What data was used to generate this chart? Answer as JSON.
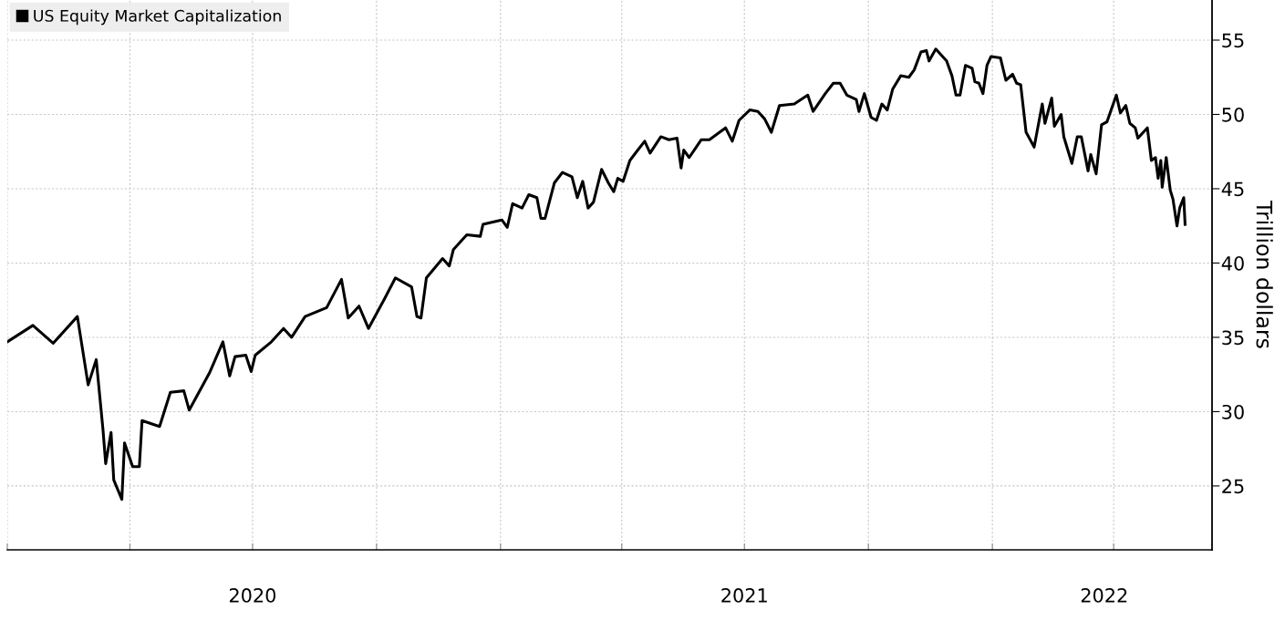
{
  "chart_data": {
    "type": "line",
    "ylabel": "Trillion dollars",
    "legend": "top left",
    "grid": true,
    "marker": "none",
    "line_style": "solid",
    "xlim": [
      "2020-01-01",
      "2022-06-13"
    ],
    "ylim": [
      20.7,
      57.7
    ],
    "yticks": [
      25,
      30,
      35,
      40,
      45,
      50,
      55
    ],
    "xticks": [
      {
        "value": "2020-01-01",
        "label": null
      },
      {
        "value": "2020-04-01",
        "label": null
      },
      {
        "value": "2020-07-01",
        "label": null
      },
      {
        "value": "2020-10-01",
        "label": null
      },
      {
        "value": "2021-01-01",
        "label": null
      },
      {
        "value": "2021-04-01",
        "label": null
      },
      {
        "value": "2021-07-01",
        "label": null
      },
      {
        "value": "2021-10-01",
        "label": null
      },
      {
        "value": "2022-01-01",
        "label": null
      },
      {
        "value": "2022-04-01",
        "label": null
      },
      {
        "value": "2020-07-01",
        "label": "2020"
      },
      {
        "value": "2021-07-01",
        "label": "2021"
      },
      {
        "value": "2022-03-25",
        "label": "2022"
      }
    ],
    "x": [
      "2020-01-01",
      "2020-01-20",
      "2020-02-04",
      "2020-02-22",
      "2020-03-01",
      "2020-03-07",
      "2020-03-12",
      "2020-03-14",
      "2020-03-18",
      "2020-03-20",
      "2020-03-26",
      "2020-03-28",
      "2020-04-03",
      "2020-04-08",
      "2020-04-10",
      "2020-04-23",
      "2020-05-01",
      "2020-05-11",
      "2020-05-15",
      "2020-05-30",
      "2020-06-09",
      "2020-06-14",
      "2020-06-18",
      "2020-06-26",
      "2020-06-30",
      "2020-07-03",
      "2020-07-15",
      "2020-07-24",
      "2020-07-30",
      "2020-08-09",
      "2020-08-25",
      "2020-09-05",
      "2020-09-10",
      "2020-09-18",
      "2020-09-25",
      "2020-10-07",
      "2020-10-15",
      "2020-10-27",
      "2020-10-31",
      "2020-11-03",
      "2020-11-07",
      "2020-11-19",
      "2020-11-24",
      "2020-11-27",
      "2020-12-07",
      "2020-12-17",
      "2020-12-19",
      "2021-01-02",
      "2021-01-06",
      "2021-01-10",
      "2021-01-17",
      "2021-01-22",
      "2021-01-28",
      "2021-01-31",
      "2021-02-03",
      "2021-02-10",
      "2021-02-16",
      "2021-02-23",
      "2021-02-27",
      "2021-03-03",
      "2021-03-07",
      "2021-03-11",
      "2021-03-17",
      "2021-03-22",
      "2021-03-26",
      "2021-03-29",
      "2021-04-02",
      "2021-04-07",
      "2021-04-12",
      "2021-04-18",
      "2021-04-22",
      "2021-04-30",
      "2021-05-06",
      "2021-05-12",
      "2021-05-15",
      "2021-05-17",
      "2021-05-21",
      "2021-05-30",
      "2021-06-05",
      "2021-06-17",
      "2021-06-22",
      "2021-06-27",
      "2021-07-05",
      "2021-07-11",
      "2021-07-16",
      "2021-07-21",
      "2021-07-27",
      "2021-08-07",
      "2021-08-17",
      "2021-08-21",
      "2021-08-30",
      "2021-09-05",
      "2021-09-10",
      "2021-09-15",
      "2021-09-22",
      "2021-09-24",
      "2021-09-28",
      "2021-10-03",
      "2021-10-07",
      "2021-10-11",
      "2021-10-15",
      "2021-10-19",
      "2021-10-25",
      "2021-10-31",
      "2021-11-04",
      "2021-11-09",
      "2021-11-13",
      "2021-11-15",
      "2021-11-20",
      "2021-11-28",
      "2021-12-02",
      "2021-12-05",
      "2021-12-08",
      "2021-12-12",
      "2021-12-17",
      "2021-12-19",
      "2021-12-22",
      "2021-12-25",
      "2021-12-28",
      "2021-12-31",
      "2022-01-07",
      "2022-01-11",
      "2022-01-16",
      "2022-01-19",
      "2022-01-22",
      "2022-01-26",
      "2022-02-01",
      "2022-02-07",
      "2022-02-09",
      "2022-02-14",
      "2022-02-16",
      "2022-02-21",
      "2022-02-23",
      "2022-03-01",
      "2022-03-05",
      "2022-03-08",
      "2022-03-13",
      "2022-03-15",
      "2022-03-19",
      "2022-03-23",
      "2022-03-27",
      "2022-04-03",
      "2022-04-06",
      "2022-04-10",
      "2022-04-13",
      "2022-04-17",
      "2022-04-19",
      "2022-04-26",
      "2022-04-29",
      "2022-05-02",
      "2022-05-04",
      "2022-05-06",
      "2022-05-07",
      "2022-05-10",
      "2022-05-13",
      "2022-05-15",
      "2022-05-18",
      "2022-05-20",
      "2022-05-23",
      "2022-05-24"
    ],
    "series": [
      {
        "name": "US Equity Market Capitalization",
        "color": "#000000",
        "values": [
          34.7,
          35.8,
          34.6,
          36.4,
          31.8,
          33.5,
          28.8,
          26.5,
          28.6,
          25.4,
          24.1,
          27.9,
          26.3,
          26.3,
          29.4,
          29.0,
          31.3,
          31.4,
          30.1,
          32.6,
          34.7,
          32.4,
          33.7,
          33.8,
          32.7,
          33.8,
          34.7,
          35.6,
          35.0,
          36.4,
          37.0,
          38.9,
          36.3,
          37.1,
          35.6,
          37.6,
          39.0,
          38.4,
          36.4,
          36.3,
          39.0,
          40.3,
          39.8,
          40.9,
          41.9,
          41.8,
          42.6,
          42.9,
          42.4,
          44.0,
          43.7,
          44.6,
          44.4,
          43.0,
          43.0,
          45.4,
          46.1,
          45.8,
          44.4,
          45.5,
          43.7,
          44.1,
          46.3,
          45.4,
          44.8,
          45.7,
          45.5,
          46.9,
          47.5,
          48.2,
          47.4,
          48.5,
          48.3,
          48.4,
          46.4,
          47.6,
          47.1,
          48.3,
          48.3,
          49.1,
          48.2,
          49.6,
          50.3,
          50.2,
          49.7,
          48.8,
          50.6,
          50.7,
          51.3,
          50.2,
          51.4,
          52.1,
          52.1,
          51.3,
          51.0,
          50.2,
          51.4,
          49.8,
          49.6,
          50.7,
          50.3,
          51.7,
          52.6,
          52.5,
          53.0,
          54.2,
          54.3,
          53.6,
          54.4,
          53.6,
          52.6,
          51.3,
          51.3,
          53.3,
          53.1,
          52.2,
          52.1,
          51.4,
          53.3,
          53.9,
          53.8,
          52.3,
          52.7,
          52.1,
          52.0,
          48.8,
          47.8,
          50.7,
          49.4,
          51.1,
          49.2,
          50.0,
          48.5,
          46.7,
          48.5,
          48.5,
          46.2,
          47.3,
          46.0,
          49.3,
          49.5,
          51.3,
          50.1,
          50.6,
          49.4,
          49.1,
          48.4,
          49.1,
          46.9,
          47.1,
          45.7,
          46.9,
          45.1,
          47.1,
          44.9,
          44.3,
          42.5,
          43.7,
          44.4,
          42.6
        ]
      }
    ]
  }
}
